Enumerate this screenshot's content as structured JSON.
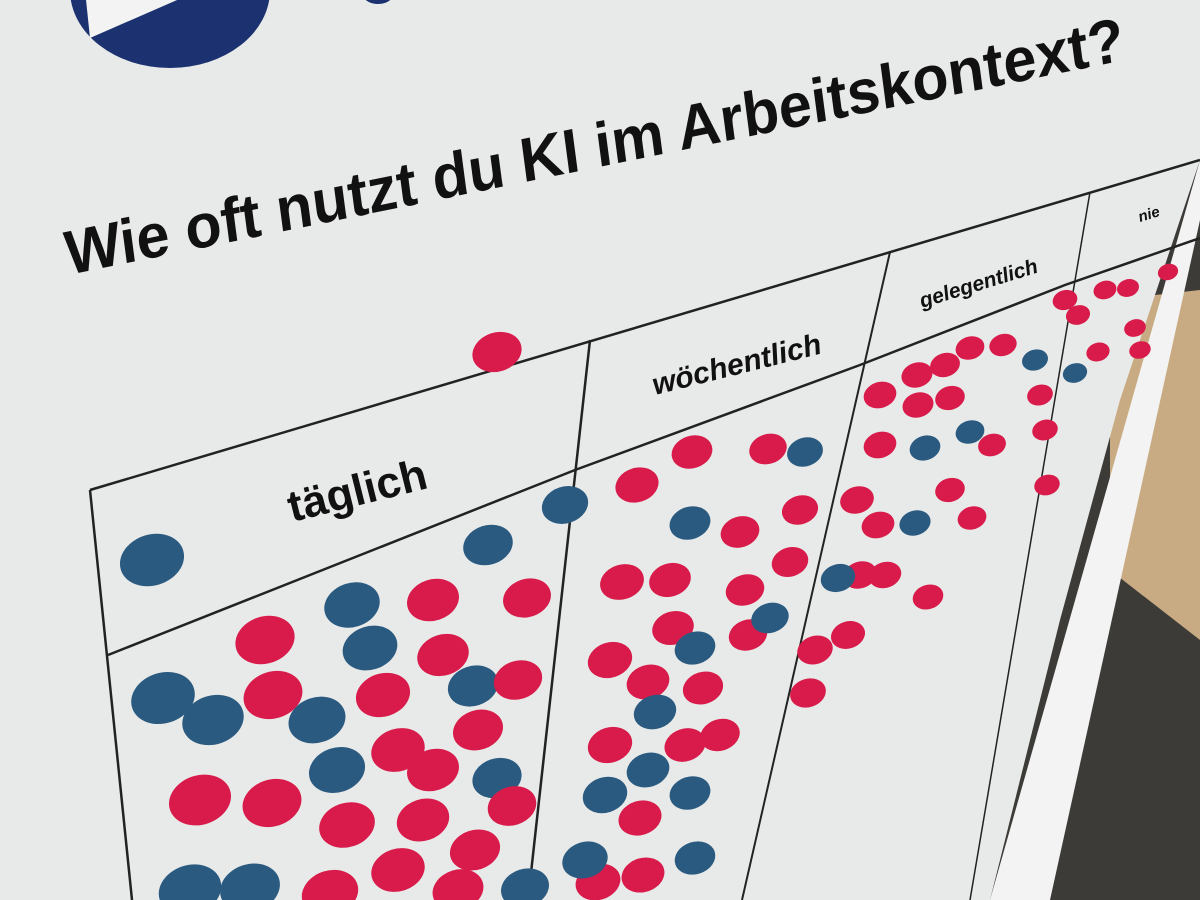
{
  "poster": {
    "title": "Wie oft nutzt du KI im Arbeitskontext?",
    "columns": [
      {
        "label": "täglich"
      },
      {
        "label": "wöchentlich"
      },
      {
        "label": "gelegentlich"
      },
      {
        "label": "nie"
      }
    ]
  },
  "colors": {
    "poster_background": "#e8eae9",
    "dot_red": "#d81b4a",
    "dot_blue": "#2b5a80",
    "logo_navy": "#1c3170",
    "cardboard": "#c9ab83",
    "floor": "#3d3b38"
  }
}
